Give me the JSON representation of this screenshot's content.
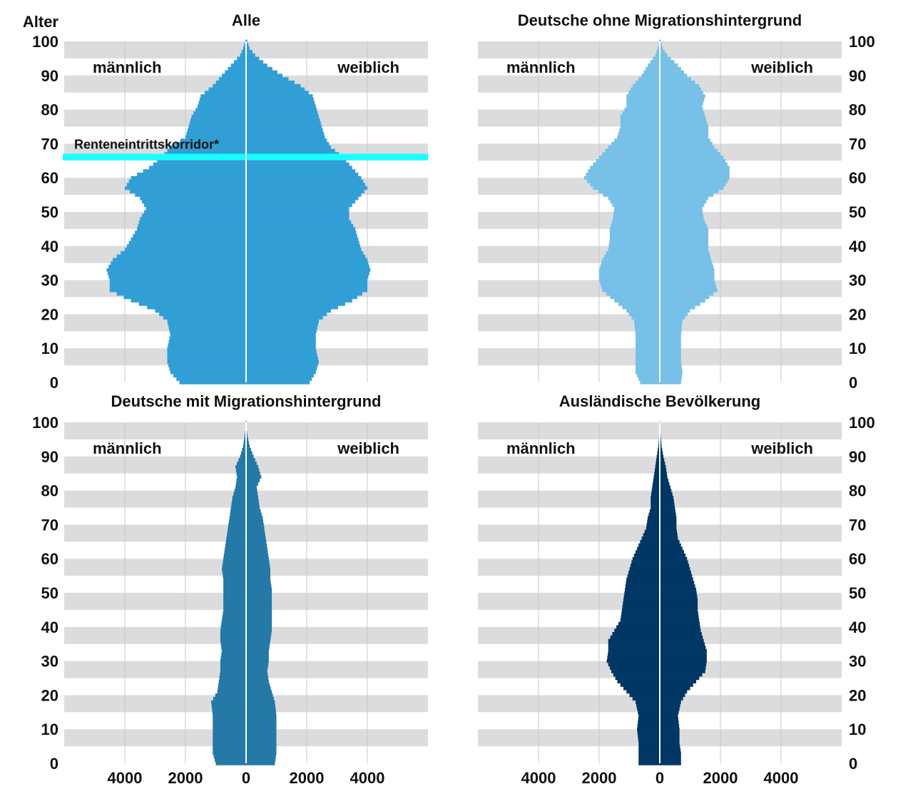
{
  "chart_data": {
    "type": "bar",
    "subtype": "population-pyramid",
    "y_axis_label": "Alter",
    "y_ticks": [
      0,
      10,
      20,
      30,
      40,
      50,
      60,
      70,
      80,
      90,
      100
    ],
    "x_ticks": [
      4000,
      2000,
      0,
      2000,
      4000
    ],
    "x_range": [
      -6000,
      6000
    ],
    "y_range": [
      0,
      100
    ],
    "grid": "alternating horizontal bands",
    "panels": [
      {
        "title": "Alle",
        "color": "#319fd6",
        "male_label": "männlich",
        "female_label": "weiblich",
        "annotation": {
          "text": "Renteneintrittskorridor*",
          "age": 66,
          "color": "#18ffff"
        },
        "male": [
          [
            0,
            2200
          ],
          [
            3,
            2500
          ],
          [
            6,
            2600
          ],
          [
            10,
            2600
          ],
          [
            14,
            2500
          ],
          [
            18,
            2600
          ],
          [
            21,
            3000
          ],
          [
            24,
            3800
          ],
          [
            27,
            4500
          ],
          [
            30,
            4500
          ],
          [
            33,
            4600
          ],
          [
            36,
            4400
          ],
          [
            39,
            4000
          ],
          [
            42,
            3800
          ],
          [
            45,
            3600
          ],
          [
            48,
            3500
          ],
          [
            51,
            3300
          ],
          [
            54,
            3500
          ],
          [
            57,
            4000
          ],
          [
            60,
            3800
          ],
          [
            63,
            3200
          ],
          [
            66,
            2800
          ],
          [
            69,
            2500
          ],
          [
            72,
            2000
          ],
          [
            75,
            1900
          ],
          [
            78,
            1800
          ],
          [
            81,
            1600
          ],
          [
            84,
            1500
          ],
          [
            87,
            1100
          ],
          [
            90,
            800
          ],
          [
            93,
            500
          ],
          [
            96,
            200
          ],
          [
            98,
            100
          ],
          [
            100,
            30
          ]
        ],
        "female": [
          [
            0,
            2100
          ],
          [
            3,
            2300
          ],
          [
            6,
            2400
          ],
          [
            10,
            2300
          ],
          [
            14,
            2300
          ],
          [
            18,
            2400
          ],
          [
            21,
            2800
          ],
          [
            24,
            3500
          ],
          [
            27,
            4000
          ],
          [
            30,
            4000
          ],
          [
            33,
            4100
          ],
          [
            36,
            4000
          ],
          [
            39,
            3800
          ],
          [
            42,
            3700
          ],
          [
            45,
            3600
          ],
          [
            48,
            3400
          ],
          [
            51,
            3400
          ],
          [
            54,
            3700
          ],
          [
            57,
            4000
          ],
          [
            60,
            3800
          ],
          [
            63,
            3500
          ],
          [
            66,
            3200
          ],
          [
            69,
            2800
          ],
          [
            72,
            2600
          ],
          [
            75,
            2500
          ],
          [
            78,
            2400
          ],
          [
            81,
            2300
          ],
          [
            84,
            2200
          ],
          [
            87,
            1800
          ],
          [
            90,
            1200
          ],
          [
            93,
            700
          ],
          [
            96,
            300
          ],
          [
            98,
            120
          ],
          [
            100,
            40
          ]
        ]
      },
      {
        "title": "Deutsche ohne Migrationshintergrund",
        "color": "#77c0e8",
        "male_label": "männlich",
        "female_label": "weiblich",
        "male": [
          [
            0,
            650
          ],
          [
            3,
            800
          ],
          [
            6,
            800
          ],
          [
            10,
            800
          ],
          [
            14,
            800
          ],
          [
            18,
            850
          ],
          [
            21,
            1100
          ],
          [
            24,
            1500
          ],
          [
            27,
            1900
          ],
          [
            30,
            2000
          ],
          [
            33,
            2000
          ],
          [
            36,
            1900
          ],
          [
            39,
            1700
          ],
          [
            42,
            1650
          ],
          [
            45,
            1650
          ],
          [
            48,
            1550
          ],
          [
            51,
            1500
          ],
          [
            54,
            1700
          ],
          [
            57,
            2200
          ],
          [
            60,
            2500
          ],
          [
            63,
            2300
          ],
          [
            66,
            2000
          ],
          [
            69,
            1700
          ],
          [
            72,
            1400
          ],
          [
            75,
            1300
          ],
          [
            78,
            1300
          ],
          [
            81,
            1100
          ],
          [
            84,
            1100
          ],
          [
            87,
            900
          ],
          [
            90,
            600
          ],
          [
            93,
            400
          ],
          [
            96,
            150
          ],
          [
            98,
            60
          ],
          [
            100,
            20
          ]
        ],
        "female": [
          [
            0,
            700
          ],
          [
            3,
            750
          ],
          [
            6,
            700
          ],
          [
            10,
            700
          ],
          [
            14,
            700
          ],
          [
            18,
            750
          ],
          [
            21,
            1000
          ],
          [
            24,
            1500
          ],
          [
            27,
            1900
          ],
          [
            30,
            1800
          ],
          [
            33,
            1800
          ],
          [
            36,
            1700
          ],
          [
            39,
            1600
          ],
          [
            42,
            1600
          ],
          [
            45,
            1600
          ],
          [
            48,
            1450
          ],
          [
            51,
            1400
          ],
          [
            54,
            1600
          ],
          [
            57,
            2100
          ],
          [
            60,
            2300
          ],
          [
            63,
            2300
          ],
          [
            66,
            2100
          ],
          [
            69,
            1800
          ],
          [
            72,
            1600
          ],
          [
            75,
            1600
          ],
          [
            78,
            1500
          ],
          [
            81,
            1400
          ],
          [
            84,
            1500
          ],
          [
            87,
            1300
          ],
          [
            90,
            900
          ],
          [
            93,
            600
          ],
          [
            96,
            250
          ],
          [
            98,
            100
          ],
          [
            100,
            30
          ]
        ]
      },
      {
        "title": "Deutsche mit Migrationshintergrund",
        "color": "#2479a7",
        "male_label": "männlich",
        "female_label": "weiblich",
        "male": [
          [
            0,
            1000
          ],
          [
            3,
            1100
          ],
          [
            6,
            1100
          ],
          [
            10,
            1100
          ],
          [
            14,
            1100
          ],
          [
            18,
            1150
          ],
          [
            21,
            950
          ],
          [
            24,
            900
          ],
          [
            27,
            850
          ],
          [
            30,
            850
          ],
          [
            33,
            800
          ],
          [
            36,
            850
          ],
          [
            39,
            850
          ],
          [
            42,
            800
          ],
          [
            45,
            750
          ],
          [
            48,
            750
          ],
          [
            51,
            750
          ],
          [
            54,
            750
          ],
          [
            57,
            800
          ],
          [
            60,
            750
          ],
          [
            63,
            700
          ],
          [
            66,
            650
          ],
          [
            69,
            600
          ],
          [
            72,
            550
          ],
          [
            75,
            500
          ],
          [
            78,
            450
          ],
          [
            81,
            350
          ],
          [
            84,
            300
          ],
          [
            87,
            350
          ],
          [
            90,
            200
          ],
          [
            93,
            100
          ],
          [
            96,
            50
          ],
          [
            98,
            20
          ],
          [
            100,
            10
          ]
        ],
        "female": [
          [
            0,
            950
          ],
          [
            3,
            1000
          ],
          [
            6,
            1000
          ],
          [
            10,
            1000
          ],
          [
            14,
            1000
          ],
          [
            18,
            950
          ],
          [
            21,
            850
          ],
          [
            24,
            750
          ],
          [
            27,
            700
          ],
          [
            30,
            750
          ],
          [
            33,
            750
          ],
          [
            36,
            800
          ],
          [
            39,
            850
          ],
          [
            42,
            850
          ],
          [
            45,
            850
          ],
          [
            48,
            850
          ],
          [
            51,
            850
          ],
          [
            54,
            800
          ],
          [
            57,
            800
          ],
          [
            60,
            750
          ],
          [
            63,
            700
          ],
          [
            66,
            650
          ],
          [
            69,
            600
          ],
          [
            72,
            550
          ],
          [
            75,
            450
          ],
          [
            78,
            400
          ],
          [
            81,
            350
          ],
          [
            84,
            500
          ],
          [
            87,
            400
          ],
          [
            90,
            250
          ],
          [
            93,
            120
          ],
          [
            96,
            50
          ],
          [
            98,
            20
          ],
          [
            100,
            10
          ]
        ]
      },
      {
        "title": "Ausländische Bevölkerung",
        "color": "#003764",
        "male_label": "männlich",
        "female_label": "weiblich",
        "male": [
          [
            0,
            700
          ],
          [
            3,
            700
          ],
          [
            6,
            700
          ],
          [
            10,
            750
          ],
          [
            14,
            700
          ],
          [
            18,
            800
          ],
          [
            21,
            1100
          ],
          [
            24,
            1400
          ],
          [
            27,
            1600
          ],
          [
            30,
            1750
          ],
          [
            33,
            1700
          ],
          [
            36,
            1700
          ],
          [
            39,
            1500
          ],
          [
            42,
            1300
          ],
          [
            45,
            1250
          ],
          [
            48,
            1200
          ],
          [
            51,
            1150
          ],
          [
            54,
            1100
          ],
          [
            57,
            1000
          ],
          [
            60,
            900
          ],
          [
            63,
            750
          ],
          [
            66,
            600
          ],
          [
            69,
            450
          ],
          [
            72,
            400
          ],
          [
            75,
            300
          ],
          [
            78,
            300
          ],
          [
            81,
            250
          ],
          [
            84,
            200
          ],
          [
            87,
            150
          ],
          [
            90,
            100
          ],
          [
            93,
            50
          ],
          [
            96,
            20
          ],
          [
            98,
            10
          ],
          [
            100,
            5
          ]
        ],
        "female": [
          [
            0,
            700
          ],
          [
            3,
            700
          ],
          [
            6,
            650
          ],
          [
            10,
            650
          ],
          [
            14,
            600
          ],
          [
            18,
            700
          ],
          [
            21,
            900
          ],
          [
            24,
            1200
          ],
          [
            27,
            1500
          ],
          [
            30,
            1550
          ],
          [
            33,
            1550
          ],
          [
            36,
            1450
          ],
          [
            39,
            1350
          ],
          [
            42,
            1300
          ],
          [
            45,
            1250
          ],
          [
            48,
            1250
          ],
          [
            51,
            1200
          ],
          [
            54,
            1100
          ],
          [
            57,
            1000
          ],
          [
            60,
            900
          ],
          [
            63,
            750
          ],
          [
            66,
            600
          ],
          [
            69,
            550
          ],
          [
            72,
            550
          ],
          [
            75,
            500
          ],
          [
            78,
            450
          ],
          [
            81,
            350
          ],
          [
            84,
            250
          ],
          [
            87,
            200
          ],
          [
            90,
            120
          ],
          [
            93,
            60
          ],
          [
            96,
            30
          ],
          [
            98,
            10
          ],
          [
            100,
            5
          ]
        ]
      }
    ]
  }
}
